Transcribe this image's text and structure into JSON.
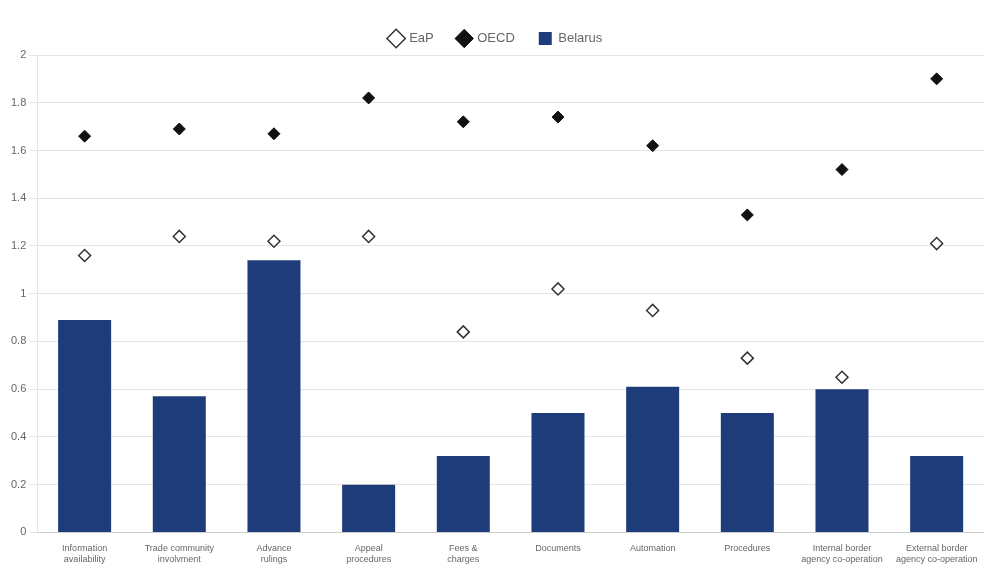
{
  "chart_data": {
    "type": "bar",
    "categories": [
      "Information\navailability",
      "Trade community\ninvolvment",
      "Advance\nrulings",
      "Appeal\nprocedures",
      "Fees &\ncharges",
      "Documents",
      "Automation",
      "Procedures",
      "Internal border\nagency co-operation",
      "External border\nagency co-operation"
    ],
    "series": [
      {
        "name": "Belarus",
        "type": "bar",
        "color": "#1F3C7A",
        "values": [
          0.89,
          0.57,
          1.14,
          0.2,
          0.32,
          0.5,
          0.61,
          0.5,
          0.6,
          0.32
        ]
      },
      {
        "name": "EaP",
        "type": "scatter",
        "marker": "diamond-open",
        "color": "#333333",
        "values": [
          1.16,
          1.24,
          1.22,
          1.24,
          0.84,
          1.02,
          0.93,
          0.73,
          0.65,
          1.21
        ]
      },
      {
        "name": "OECD",
        "type": "scatter",
        "marker": "diamond",
        "color": "#111111",
        "values": [
          1.66,
          1.69,
          1.67,
          1.82,
          1.72,
          1.74,
          1.62,
          1.33,
          1.52,
          1.9
        ]
      }
    ],
    "ylim": [
      0,
      2
    ],
    "yticks": [
      0,
      0.2,
      0.4,
      0.6,
      0.8,
      1,
      1.2,
      1.4,
      1.6,
      1.8,
      2
    ],
    "grid": true,
    "legend": "top"
  }
}
